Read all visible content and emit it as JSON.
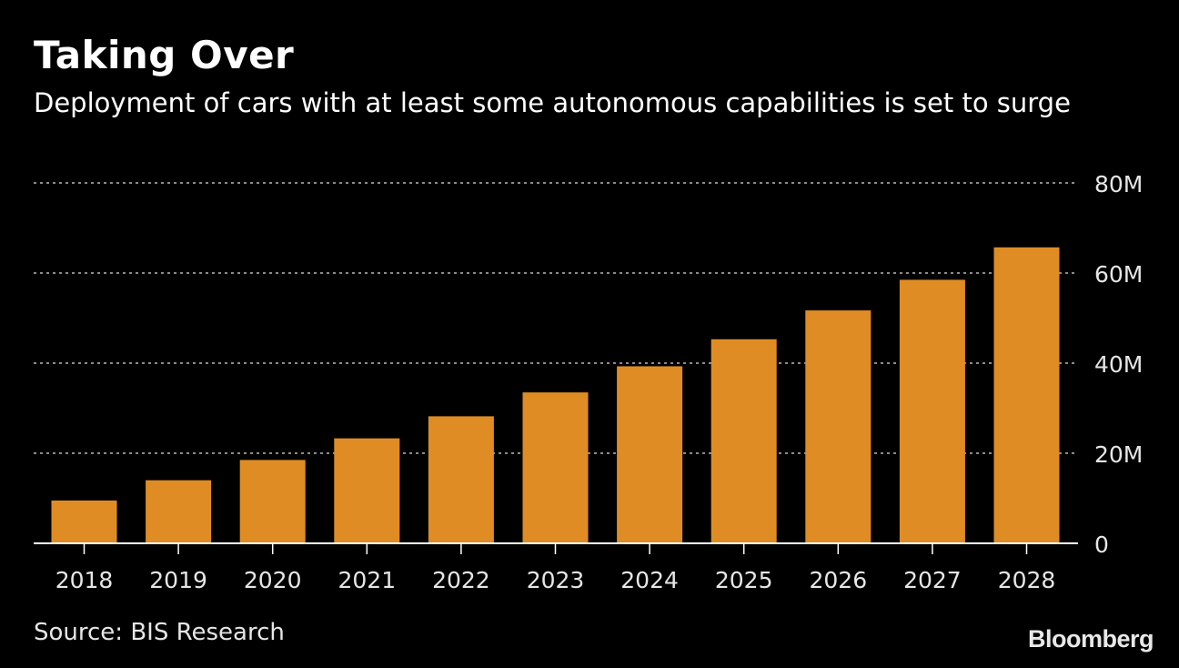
{
  "chart_data": {
    "type": "bar",
    "title": "Taking Over",
    "subtitle": "Deployment of cars with at least some autonomous capabilities is set to surge",
    "categories": [
      "2018",
      "2019",
      "2020",
      "2021",
      "2022",
      "2023",
      "2024",
      "2025",
      "2026",
      "2027",
      "2028"
    ],
    "values": [
      9.5,
      14,
      18.5,
      23.3,
      28.2,
      33.5,
      39.3,
      45.3,
      51.7,
      58.5,
      65.7
    ],
    "unit": "M",
    "ylim": [
      0,
      80
    ],
    "yticks": [
      {
        "value": 0,
        "label": "0"
      },
      {
        "value": 20,
        "label": "20M"
      },
      {
        "value": 40,
        "label": "40M"
      },
      {
        "value": 60,
        "label": "60M"
      },
      {
        "value": 80,
        "label": "80M"
      }
    ],
    "grid": true,
    "y_axis_side": "right",
    "bar_color": "#e08c24",
    "grid_color": "#8a8a8a",
    "axis_color": "#ffffff",
    "source": "Source: BIS Research"
  },
  "brand": "Bloomberg"
}
